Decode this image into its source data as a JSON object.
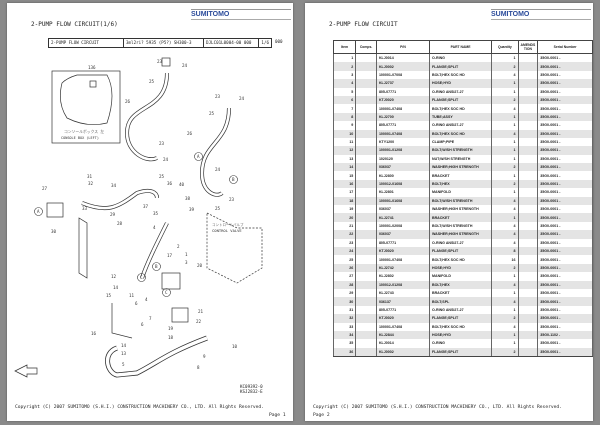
{
  "brand": "SUMITOMO",
  "left_page": {
    "title": "2-PUMP FLOW CIRCUIT(1/6)",
    "info": {
      "name": "2-PUMP FLOW CIRCUIT",
      "model": "3ml2ri? 5935 (P5?) SH300-3",
      "code": "DJLC01L0004-00   000",
      "fraction": "1/6",
      "rev": "000"
    },
    "diagram": {
      "inset_label_jp": "コンソールボックス 左",
      "inset_label": "CONSOLE BOX (LEFT)",
      "control_valve_jp": "コントロールバルブ",
      "control_valve": "CONTROL VALVE",
      "callouts": [
        "136",
        "23",
        "24",
        "25",
        "26",
        "23",
        "24",
        "25",
        "26",
        "23",
        "24",
        "25",
        "24",
        "23",
        "25",
        "A",
        "B",
        "31",
        "32",
        "27",
        "33",
        "34",
        "36",
        "40",
        "37",
        "35",
        "38",
        "39",
        "A",
        "29",
        "30",
        "28",
        "4",
        "2",
        "1",
        "3",
        "17",
        "B",
        "20",
        "C",
        "12",
        "14",
        "11",
        "15",
        "6",
        "4",
        "C",
        "21",
        "22",
        "16",
        "6",
        "7",
        "19",
        "18",
        "14",
        "13",
        "10",
        "9",
        "5",
        "8"
      ]
    },
    "codes": [
      "KC09392-0",
      "KSJ2832-E"
    ],
    "copyright": "Copyright (C) 2007 SUMITOMO (S.H.I.) CONSTRUCTION MACHINERY CO., LTD. All Rights Reserved.",
    "page": "Page 1"
  },
  "right_page": {
    "title": "2-PUMP FLOW CIRCUIT",
    "columns": [
      "Item",
      "Comps.",
      "P/N",
      "PART NAME",
      "Quantity",
      "AMENDS TION",
      "Serial Number"
    ],
    "rows": [
      [
        "1",
        "",
        "KLJ0014",
        "O-RING",
        "1",
        "",
        "35G0-0001 -"
      ],
      [
        "2",
        "",
        "KLJ0002",
        "FLANGE;SPLIT",
        "2",
        "",
        "35G0-0001 -"
      ],
      [
        "3",
        "",
        "100001-07008",
        "BOLT;HEX SOC HD",
        "4",
        "",
        "35G0-0001 -"
      ],
      [
        "4",
        "",
        "KLJ2737",
        "HOSE;HYD",
        "1",
        "",
        "35G0-0001 -"
      ],
      [
        "5",
        "",
        "805-07771",
        "O-RING ANSI27-27",
        "1",
        "",
        "35G0-0001 -"
      ],
      [
        "6",
        "",
        "KTJ0020",
        "FLANGE;SPLIT",
        "2",
        "",
        "35G0-0001 -"
      ],
      [
        "7",
        "",
        "100001-07408",
        "BOLT;HEX SOC HD",
        "4",
        "",
        "35G0-0001 -"
      ],
      [
        "8",
        "",
        "KLJ2700",
        "TUBE;ASSY",
        "1",
        "",
        "35G0-0001 -"
      ],
      [
        "9",
        "",
        "805-07771",
        "O-RING ANSI27-27",
        "1",
        "",
        "35G0-0001 -"
      ],
      [
        "10",
        "",
        "100001-07408",
        "BOLT;HEX SOC HD",
        "4",
        "",
        "35G0-0001 -"
      ],
      [
        "11",
        "",
        "KTY1200",
        "CLAMP;PIPE",
        "1",
        "",
        "35G0-0001 -"
      ],
      [
        "12",
        "",
        "100001-01208",
        "BOLT;W/SH STRENGTH",
        "1",
        "",
        "35G0-0001 -"
      ],
      [
        "13",
        "",
        "1020120",
        "NUT;W/SH STRENGTH",
        "1",
        "",
        "35G0-0001 -"
      ],
      [
        "14",
        "",
        "036037",
        "WASHER;HIGH STRENGTH",
        "2",
        "",
        "35G0-0001 -"
      ],
      [
        "15",
        "",
        "KLJ2800",
        "BRACKET",
        "1",
        "",
        "35G0-0001 -"
      ],
      [
        "16",
        "",
        "100012-01608",
        "BOLT;HEX",
        "2",
        "",
        "35G0-0001 -"
      ],
      [
        "17",
        "",
        "KLJ2801",
        "MANIFOLD",
        "1",
        "",
        "35G0-0001 -"
      ],
      [
        "18",
        "",
        "100001-01608",
        "BOLT;W/SH STRENGTH",
        "4",
        "",
        "35G0-0001 -"
      ],
      [
        "19",
        "",
        "036037",
        "WASHER;HIGH STRENGTH",
        "4",
        "",
        "35G0-0001 -"
      ],
      [
        "20",
        "",
        "KLJ2741",
        "BRACKET",
        "1",
        "",
        "35G0-0001 -"
      ],
      [
        "21",
        "",
        "100001-02008",
        "BOLT;W/SH STRENGTH",
        "4",
        "",
        "35G0-0001 -"
      ],
      [
        "22",
        "",
        "036037",
        "WASHER;HIGH STRENGTH",
        "4",
        "",
        "35G0-0001 -"
      ],
      [
        "23",
        "",
        "805-07771",
        "O-RING ANSI27-27",
        "4",
        "",
        "35G0-0001 -"
      ],
      [
        "24",
        "",
        "KTJ0020",
        "FLANGE;SPLIT",
        "8",
        "",
        "35G0-0001 -"
      ],
      [
        "25",
        "",
        "100001-07408",
        "BOLT;HEX SOC HD",
        "16",
        "",
        "35G0-0001 -"
      ],
      [
        "26",
        "",
        "KLJ2742",
        "HOSE;HYD",
        "2",
        "",
        "35G0-0001 -"
      ],
      [
        "27",
        "",
        "KLJ2802",
        "MANIFOLD",
        "1",
        "",
        "35G0-0001 -"
      ],
      [
        "28",
        "",
        "100012-01208",
        "BOLT;HEX",
        "4",
        "",
        "35G0-0001 -"
      ],
      [
        "29",
        "",
        "KLJ2743",
        "BRACKET",
        "1",
        "",
        "35G0-0001 -"
      ],
      [
        "30",
        "",
        "036137",
        "BOLT;SPL",
        "4",
        "",
        "35G0-0001 -"
      ],
      [
        "31",
        "",
        "805-07771",
        "O-RING ANSI27-27",
        "1",
        "",
        "35G0-0001 -"
      ],
      [
        "32",
        "",
        "KTJ0020",
        "FLANGE;SPLIT",
        "2",
        "",
        "35G0-0001 -"
      ],
      [
        "33",
        "",
        "100001-07408",
        "BOLT;HEX SOC HD",
        "4",
        "",
        "35G0-0001 -"
      ],
      [
        "34",
        "",
        "KLJ2844",
        "HOSE;HYD",
        "1",
        "",
        "35G0-1102 -"
      ],
      [
        "35",
        "",
        "KLJ0014",
        "O-RING",
        "1",
        "",
        "35G0-0001 -"
      ],
      [
        "36",
        "",
        "KLJ0002",
        "FLANGE;SPLIT",
        "2",
        "",
        "35G0-0001 -"
      ]
    ],
    "copyright": "Copyright (C) 2007 SUMITOMO (S.H.I.) CONSTRUCTION MACHINERY CO., LTD. All Rights Reserved.",
    "page": "Page 2"
  }
}
